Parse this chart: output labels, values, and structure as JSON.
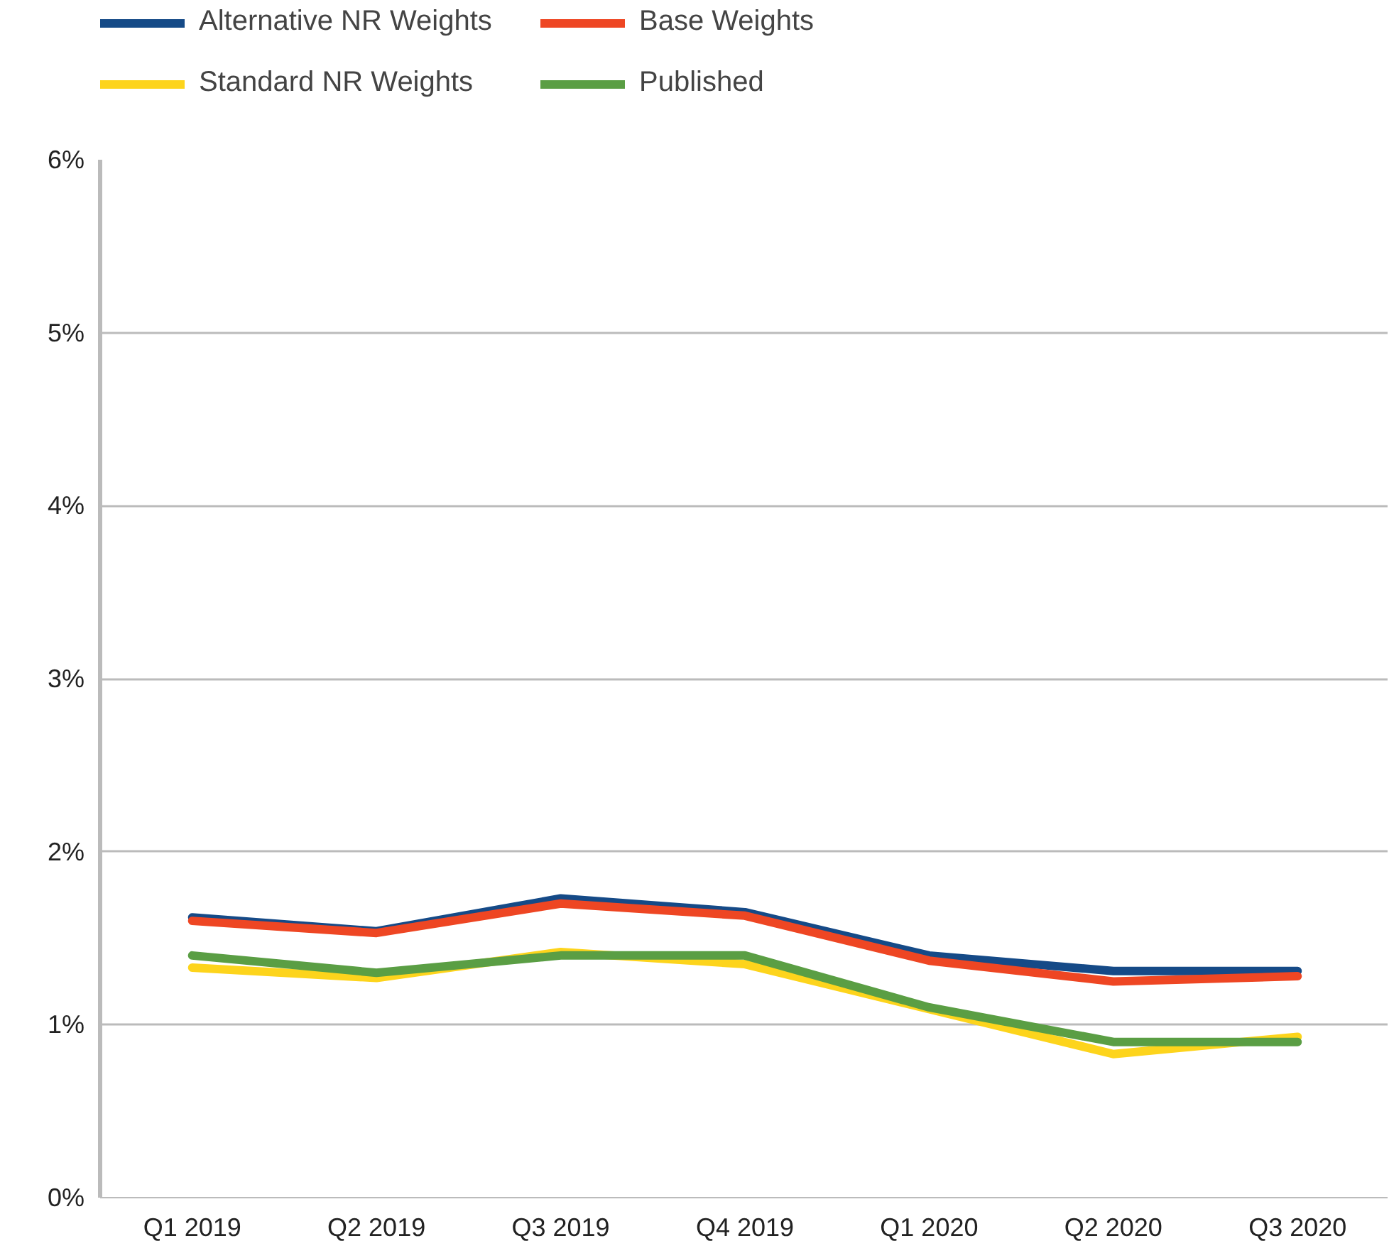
{
  "chart_data": {
    "type": "line",
    "categories": [
      "Q1 2019",
      "Q2 2019",
      "Q3 2019",
      "Q4 2019",
      "Q1 2020",
      "Q2 2020",
      "Q3 2020"
    ],
    "series": [
      {
        "name": "Alternative NR Weights",
        "color": "#154a87",
        "values": [
          1.62,
          1.54,
          1.73,
          1.65,
          1.4,
          1.31,
          1.31
        ]
      },
      {
        "name": "Base Weights",
        "color": "#ee4623",
        "values": [
          1.6,
          1.53,
          1.7,
          1.63,
          1.37,
          1.25,
          1.28
        ]
      },
      {
        "name": "Standard NR Weights",
        "color": "#fdd41c",
        "values": [
          1.33,
          1.27,
          1.42,
          1.35,
          1.09,
          0.83,
          0.93
        ]
      },
      {
        "name": "Published",
        "color": "#5a9e44",
        "values": [
          1.4,
          1.3,
          1.4,
          1.4,
          1.1,
          0.9,
          0.9
        ]
      }
    ],
    "ylim": [
      0,
      6
    ],
    "yticks": [
      {
        "value": 0,
        "label": "0%"
      },
      {
        "value": 1,
        "label": "1%"
      },
      {
        "value": 2,
        "label": "2%"
      },
      {
        "value": 3,
        "label": "3%"
      },
      {
        "value": 4,
        "label": "4%"
      },
      {
        "value": 5,
        "label": "5%"
      },
      {
        "value": 6,
        "label": "6%"
      }
    ],
    "grid": "y",
    "legend": "top left",
    "marker": "none",
    "line_style": "solid"
  }
}
